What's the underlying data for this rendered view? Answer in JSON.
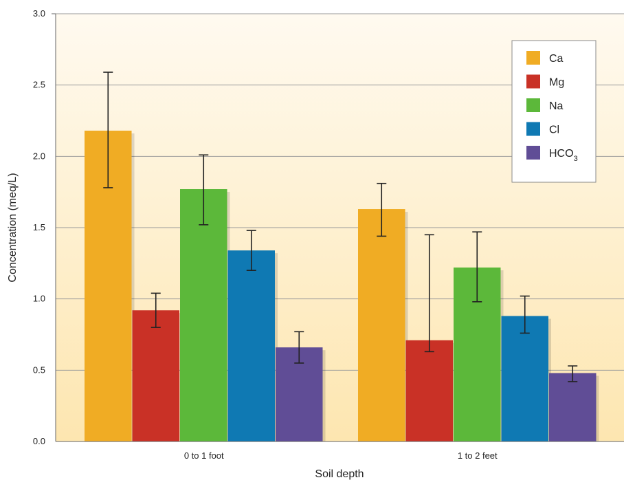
{
  "chart_data": {
    "type": "bar",
    "xlabel": "Soil depth",
    "ylabel": "Concentration (meq/L)",
    "ylim": [
      0,
      3.0
    ],
    "yticks": [
      "0.0",
      "0.5",
      "1.0",
      "1.5",
      "2.0",
      "2.5",
      "3.0"
    ],
    "grid": "horizontal",
    "legend_position": "top-right",
    "categories": [
      "0 to 1 foot",
      "1 to 2 feet"
    ],
    "series": [
      {
        "name": "Ca",
        "color": "#f0ac24",
        "values": [
          2.18,
          1.63
        ],
        "error_low": [
          1.78,
          1.44
        ],
        "error_high": [
          2.59,
          1.81
        ]
      },
      {
        "name": "Mg",
        "color": "#c93126",
        "values": [
          0.92,
          0.71
        ],
        "error_low": [
          0.8,
          0.63
        ],
        "error_high": [
          1.04,
          1.45
        ]
      },
      {
        "name": "Na",
        "color": "#5cb83a",
        "values": [
          1.77,
          1.22
        ],
        "error_low": [
          1.52,
          0.98
        ],
        "error_high": [
          2.01,
          1.47
        ]
      },
      {
        "name": "Cl",
        "color": "#0f79b3",
        "values": [
          1.34,
          0.88
        ],
        "error_low": [
          1.2,
          0.76
        ],
        "error_high": [
          1.48,
          1.02
        ]
      },
      {
        "name": "HCO3",
        "color": "#604d96",
        "values": [
          0.66,
          0.48
        ],
        "error_low": [
          0.55,
          0.42
        ],
        "error_high": [
          0.77,
          0.53
        ]
      }
    ]
  }
}
